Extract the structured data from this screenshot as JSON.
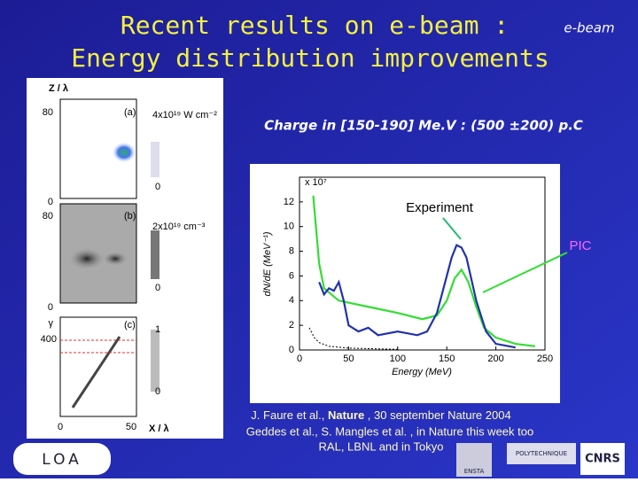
{
  "header": {
    "title_lines": [
      "Recent results on e-beam :",
      "Energy distribution improvements"
    ],
    "tag": "e-beam"
  },
  "charge_text": "Charge in [150-190] Me.V : (500 ±200) p.C",
  "simulation": {
    "y_axis_label": "Z / λ",
    "x_axis_label": "X / λ",
    "x_labels": [
      0,
      50
    ],
    "panels": [
      {
        "tag": "(a)",
        "y_labels": [
          80,
          0
        ],
        "scale_label": "4x10¹⁹ W cm⁻²",
        "scale_ticks": [
          0
        ]
      },
      {
        "tag": "(b)",
        "y_labels": [
          80,
          0
        ],
        "scale_label": "2x10¹⁹ cm⁻³",
        "scale_ticks": [
          0
        ]
      },
      {
        "tag": "(c)",
        "y_axis_label": "γ",
        "y_labels": [
          400
        ],
        "scale_ticks": [
          1,
          0
        ]
      }
    ]
  },
  "spectrum": {
    "type": "line",
    "x_label": "Energy (MeV)",
    "y_label": "dN/dE (MeV⁻¹)",
    "y_exponent": "x 10⁷",
    "xlim": [
      0,
      250
    ],
    "xticks": [
      0,
      50,
      100,
      150,
      200,
      250
    ],
    "ylim": [
      0,
      14
    ],
    "yticks": [
      0,
      2,
      4,
      6,
      8,
      10,
      12
    ],
    "series": [
      {
        "name": "PIC",
        "color": "#33dd33",
        "x": [
          14,
          20,
          25,
          40,
          70,
          100,
          125,
          140,
          150,
          158,
          165,
          172,
          180,
          188,
          200,
          220,
          240
        ],
        "values": [
          12.5,
          7,
          5,
          4,
          3.5,
          3,
          2.5,
          2.8,
          4,
          5.8,
          6.5,
          5.5,
          3.5,
          1.8,
          1,
          0.5,
          0.3
        ]
      },
      {
        "name": "Experiment",
        "color": "#2233aa",
        "x": [
          20,
          25,
          30,
          35,
          40,
          45,
          50,
          60,
          70,
          80,
          100,
          120,
          130,
          140,
          150,
          155,
          160,
          165,
          170,
          180,
          190,
          200,
          220
        ],
        "values": [
          5.5,
          4.5,
          5,
          4.8,
          5.5,
          4,
          2,
          1.5,
          1.8,
          1.2,
          1.5,
          1.2,
          1.5,
          3,
          6,
          7.5,
          8.5,
          8.3,
          7.5,
          4,
          1.5,
          0.5,
          0.2
        ]
      },
      {
        "color": "#000000",
        "dashed": true,
        "x": [
          10,
          15,
          20,
          30,
          50,
          100
        ],
        "values": [
          1.8,
          1,
          0.6,
          0.3,
          0.15,
          0.05
        ]
      }
    ]
  },
  "annotations": {
    "experiment": "Experiment",
    "pic": "PIC"
  },
  "references": {
    "line1": [
      "J. Faure et al., ",
      "Nature",
      " , 30 september Nature 2004"
    ],
    "line2": "Geddes et al., S. Mangles et al. , in Nature this week too",
    "line3": "RAL, LBNL and in Tokyo"
  },
  "footer": {
    "logo": "LOA",
    "partner_logos": [
      "ENSTA",
      "POLYTECHNIQUE",
      "CNRS"
    ]
  }
}
